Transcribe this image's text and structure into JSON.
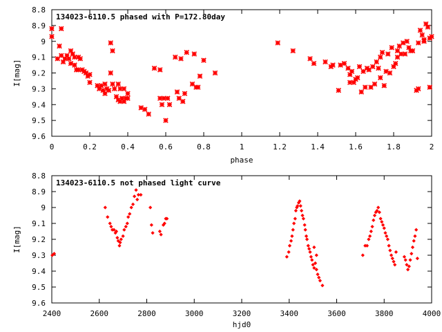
{
  "chart_data": [
    {
      "type": "scatter",
      "title": "134023-6110.5 phased with P=172.80day",
      "xlabel": "phase",
      "ylabel": "I[mag]",
      "xlim": [
        0,
        2
      ],
      "ylim": [
        9.6,
        8.8
      ],
      "y_inverted": true,
      "xticks": [
        "0",
        "0.2",
        "0.4",
        "0.6",
        "0.8",
        "1",
        "1.2",
        "1.4",
        "1.6",
        "1.8",
        "2"
      ],
      "yticks": [
        "8.8",
        "8.9",
        "9",
        "9.1",
        "9.2",
        "9.3",
        "9.4",
        "9.5",
        "9.6"
      ],
      "marker_color": "#ff0000",
      "marker": "star",
      "series": [
        {
          "points": [
            [
              0.0,
              8.92
            ],
            [
              0.0,
              8.97
            ],
            [
              0.04,
              9.03
            ],
            [
              0.05,
              8.92
            ],
            [
              0.03,
              9.11
            ],
            [
              0.05,
              9.09
            ],
            [
              0.06,
              9.13
            ],
            [
              0.07,
              9.11
            ],
            [
              0.08,
              9.09
            ],
            [
              0.09,
              9.11
            ],
            [
              0.1,
              9.14
            ],
            [
              0.1,
              9.06
            ],
            [
              0.11,
              9.08
            ],
            [
              0.12,
              9.1
            ],
            [
              0.12,
              9.15
            ],
            [
              0.13,
              9.18
            ],
            [
              0.14,
              9.1
            ],
            [
              0.14,
              9.18
            ],
            [
              0.15,
              9.11
            ],
            [
              0.16,
              9.18
            ],
            [
              0.17,
              9.19
            ],
            [
              0.18,
              9.2
            ],
            [
              0.19,
              9.22
            ],
            [
              0.2,
              9.21
            ],
            [
              0.2,
              9.26
            ],
            [
              0.24,
              9.28
            ],
            [
              0.25,
              9.3
            ],
            [
              0.26,
              9.28
            ],
            [
              0.27,
              9.31
            ],
            [
              0.28,
              9.27
            ],
            [
              0.28,
              9.33
            ],
            [
              0.29,
              9.3
            ],
            [
              0.3,
              9.31
            ],
            [
              0.31,
              9.01
            ],
            [
              0.31,
              9.2
            ],
            [
              0.32,
              9.06
            ],
            [
              0.32,
              9.27
            ],
            [
              0.33,
              9.3
            ],
            [
              0.34,
              9.35
            ],
            [
              0.35,
              9.37
            ],
            [
              0.35,
              9.27
            ],
            [
              0.36,
              9.3
            ],
            [
              0.36,
              9.38
            ],
            [
              0.37,
              9.36
            ],
            [
              0.38,
              9.3
            ],
            [
              0.38,
              9.38
            ],
            [
              0.39,
              9.36
            ],
            [
              0.4,
              9.33
            ],
            [
              0.4,
              9.36
            ],
            [
              0.47,
              9.42
            ],
            [
              0.49,
              9.43
            ],
            [
              0.51,
              9.46
            ],
            [
              0.54,
              9.17
            ],
            [
              0.57,
              9.18
            ],
            [
              0.57,
              9.36
            ],
            [
              0.58,
              9.4
            ],
            [
              0.59,
              9.36
            ],
            [
              0.6,
              9.5
            ],
            [
              0.61,
              9.36
            ],
            [
              0.62,
              9.4
            ],
            [
              0.65,
              9.1
            ],
            [
              0.66,
              9.32
            ],
            [
              0.67,
              9.36
            ],
            [
              0.68,
              9.11
            ],
            [
              0.69,
              9.38
            ],
            [
              0.7,
              9.33
            ],
            [
              0.71,
              9.07
            ],
            [
              0.74,
              9.27
            ],
            [
              0.75,
              9.08
            ],
            [
              0.76,
              9.29
            ],
            [
              0.77,
              9.29
            ],
            [
              0.78,
              9.22
            ],
            [
              0.8,
              9.12
            ],
            [
              0.86,
              9.2
            ],
            [
              1.19,
              9.01
            ],
            [
              1.27,
              9.06
            ],
            [
              1.36,
              9.11
            ],
            [
              1.38,
              9.14
            ],
            [
              1.44,
              9.13
            ],
            [
              1.47,
              9.16
            ],
            [
              1.48,
              9.15
            ],
            [
              1.51,
              9.31
            ],
            [
              1.52,
              9.15
            ],
            [
              1.54,
              9.14
            ],
            [
              1.56,
              9.17
            ],
            [
              1.57,
              9.26
            ],
            [
              1.57,
              9.21
            ],
            [
              1.58,
              9.19
            ],
            [
              1.59,
              9.26
            ],
            [
              1.6,
              9.24
            ],
            [
              1.61,
              9.23
            ],
            [
              1.62,
              9.16
            ],
            [
              1.63,
              9.32
            ],
            [
              1.64,
              9.19
            ],
            [
              1.65,
              9.29
            ],
            [
              1.66,
              9.17
            ],
            [
              1.67,
              9.18
            ],
            [
              1.68,
              9.29
            ],
            [
              1.69,
              9.16
            ],
            [
              1.7,
              9.27
            ],
            [
              1.71,
              9.13
            ],
            [
              1.72,
              9.17
            ],
            [
              1.73,
              9.23
            ],
            [
              1.73,
              9.1
            ],
            [
              1.74,
              9.07
            ],
            [
              1.75,
              9.28
            ],
            [
              1.76,
              9.19
            ],
            [
              1.77,
              9.08
            ],
            [
              1.78,
              9.2
            ],
            [
              1.79,
              9.04
            ],
            [
              1.8,
              9.16
            ],
            [
              1.81,
              9.14
            ],
            [
              1.82,
              9.1
            ],
            [
              1.82,
              9.06
            ],
            [
              1.83,
              9.03
            ],
            [
              1.84,
              9.08
            ],
            [
              1.85,
              9.01
            ],
            [
              1.86,
              9.08
            ],
            [
              1.87,
              9.0
            ],
            [
              1.88,
              9.04
            ],
            [
              1.89,
              9.06
            ],
            [
              1.9,
              9.06
            ],
            [
              1.92,
              9.31
            ],
            [
              1.93,
              9.3
            ],
            [
              1.93,
              9.01
            ],
            [
              1.95,
              8.96
            ],
            [
              1.96,
              8.99
            ],
            [
              1.97,
              8.89
            ],
            [
              1.98,
              8.91
            ],
            [
              1.99,
              8.98
            ],
            [
              2.0,
              8.97
            ],
            [
              1.99,
              9.29
            ],
            [
              1.94,
              8.93
            ],
            [
              1.96,
              9.0
            ]
          ]
        }
      ]
    },
    {
      "type": "scatter",
      "title": "134023-6110.5 not phased light curve",
      "xlabel": "hjd0",
      "ylabel": "I[mag]",
      "xlim": [
        2400,
        4000
      ],
      "ylim": [
        9.6,
        8.8
      ],
      "y_inverted": true,
      "xticks": [
        "2400",
        "2600",
        "2800",
        "3000",
        "3200",
        "3400",
        "3600",
        "3800",
        "4000"
      ],
      "yticks": [
        "8.8",
        "8.9",
        "9",
        "9.1",
        "9.2",
        "9.3",
        "9.4",
        "9.5",
        "9.6"
      ],
      "marker_color": "#ff0000",
      "marker": "diamond",
      "series": [
        {
          "points": [
            [
              2402,
              9.3
            ],
            [
              2410,
              9.29
            ],
            [
              2625,
              9.0
            ],
            [
              2635,
              9.06
            ],
            [
              2645,
              9.1
            ],
            [
              2650,
              9.12
            ],
            [
              2655,
              9.14
            ],
            [
              2662,
              9.14
            ],
            [
              2668,
              9.16
            ],
            [
              2672,
              9.15
            ],
            [
              2676,
              9.19
            ],
            [
              2680,
              9.21
            ],
            [
              2685,
              9.24
            ],
            [
              2688,
              9.22
            ],
            [
              2692,
              9.2
            ],
            [
              2700,
              9.18
            ],
            [
              2705,
              9.14
            ],
            [
              2712,
              9.12
            ],
            [
              2718,
              9.1
            ],
            [
              2722,
              9.06
            ],
            [
              2728,
              9.04
            ],
            [
              2735,
              9.0
            ],
            [
              2742,
              8.98
            ],
            [
              2748,
              8.93
            ],
            [
              2755,
              8.89
            ],
            [
              2760,
              8.95
            ],
            [
              2765,
              8.92
            ],
            [
              2775,
              8.92
            ],
            [
              2815,
              9.0
            ],
            [
              2820,
              9.11
            ],
            [
              2825,
              9.16
            ],
            [
              2855,
              9.15
            ],
            [
              2860,
              9.17
            ],
            [
              2870,
              9.11
            ],
            [
              2875,
              9.1
            ],
            [
              2880,
              9.07
            ],
            [
              2885,
              9.07
            ],
            [
              3390,
              9.31
            ],
            [
              3398,
              9.28
            ],
            [
              3402,
              9.24
            ],
            [
              3408,
              9.21
            ],
            [
              3412,
              9.18
            ],
            [
              3416,
              9.14
            ],
            [
              3420,
              9.1
            ],
            [
              3425,
              9.07
            ],
            [
              3428,
              9.02
            ],
            [
              3432,
              9.0
            ],
            [
              3435,
              8.99
            ],
            [
              3440,
              8.97
            ],
            [
              3444,
              8.96
            ],
            [
              3448,
              8.99
            ],
            [
              3452,
              9.02
            ],
            [
              3456,
              9.05
            ],
            [
              3460,
              9.07
            ],
            [
              3465,
              9.11
            ],
            [
              3468,
              9.14
            ],
            [
              3472,
              9.18
            ],
            [
              3475,
              9.2
            ],
            [
              3480,
              9.24
            ],
            [
              3484,
              9.26
            ],
            [
              3488,
              9.28
            ],
            [
              3492,
              9.31
            ],
            [
              3496,
              9.33
            ],
            [
              3500,
              9.36
            ],
            [
              3505,
              9.38
            ],
            [
              3510,
              9.35
            ],
            [
              3515,
              9.39
            ],
            [
              3520,
              9.42
            ],
            [
              3525,
              9.44
            ],
            [
              3530,
              9.46
            ],
            [
              3540,
              9.49
            ],
            [
              3505,
              9.25
            ],
            [
              3515,
              9.3
            ],
            [
              3710,
              9.3
            ],
            [
              3720,
              9.24
            ],
            [
              3728,
              9.24
            ],
            [
              3735,
              9.2
            ],
            [
              3740,
              9.18
            ],
            [
              3745,
              9.15
            ],
            [
              3750,
              9.12
            ],
            [
              3755,
              9.08
            ],
            [
              3760,
              9.05
            ],
            [
              3765,
              9.03
            ],
            [
              3770,
              9.02
            ],
            [
              3775,
              9.0
            ],
            [
              3780,
              9.03
            ],
            [
              3785,
              9.07
            ],
            [
              3790,
              9.09
            ],
            [
              3795,
              9.11
            ],
            [
              3800,
              9.13
            ],
            [
              3805,
              9.16
            ],
            [
              3810,
              9.18
            ],
            [
              3815,
              9.2
            ],
            [
              3820,
              9.24
            ],
            [
              3825,
              9.27
            ],
            [
              3830,
              9.3
            ],
            [
              3835,
              9.32
            ],
            [
              3840,
              9.34
            ],
            [
              3845,
              9.36
            ],
            [
              3850,
              9.28
            ],
            [
              3885,
              9.31
            ],
            [
              3890,
              9.33
            ],
            [
              3895,
              9.36
            ],
            [
              3900,
              9.39
            ],
            [
              3905,
              9.37
            ],
            [
              3910,
              9.33
            ],
            [
              3915,
              9.29
            ],
            [
              3920,
              9.25
            ],
            [
              3925,
              9.21
            ],
            [
              3930,
              9.18
            ],
            [
              3935,
              9.14
            ],
            [
              3940,
              9.32
            ]
          ]
        }
      ]
    }
  ]
}
